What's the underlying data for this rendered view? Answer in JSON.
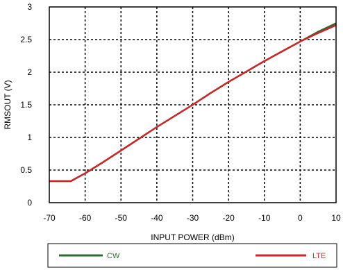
{
  "chart_data": {
    "type": "line",
    "title": "",
    "xlabel": "INPUT POWER (dBm)",
    "ylabel": "RMSOUT (V)",
    "xlim": [
      -70,
      10
    ],
    "ylim": [
      0,
      3
    ],
    "x_ticks": [
      "-70",
      "-60",
      "-50",
      "-40",
      "-30",
      "-20",
      "-10",
      "0",
      "10"
    ],
    "y_ticks": [
      "0",
      "0.5",
      "1",
      "1.5",
      "2",
      "2.5",
      "3"
    ],
    "grid": true,
    "grid_style": "dashed",
    "legend_position": "bottom",
    "series": [
      {
        "name": "CW",
        "color": "#2e6b34",
        "x": [
          -70,
          -64,
          -60,
          -55,
          -50,
          -45,
          -40,
          -35,
          -30,
          -25,
          -20,
          -15,
          -10,
          -5,
          0,
          5,
          10
        ],
        "y": [
          0.33,
          0.33,
          0.45,
          0.62,
          0.8,
          0.98,
          1.16,
          1.33,
          1.5,
          1.68,
          1.85,
          2.01,
          2.17,
          2.32,
          2.47,
          2.62,
          2.75
        ]
      },
      {
        "name": "LTE",
        "color": "#c8282c",
        "x": [
          -70,
          -64,
          -60,
          -55,
          -50,
          -45,
          -40,
          -35,
          -30,
          -25,
          -20,
          -15,
          -10,
          -5,
          0,
          5,
          10
        ],
        "y": [
          0.33,
          0.33,
          0.45,
          0.62,
          0.8,
          0.98,
          1.16,
          1.33,
          1.5,
          1.68,
          1.85,
          2.01,
          2.17,
          2.32,
          2.47,
          2.6,
          2.72
        ]
      }
    ]
  }
}
